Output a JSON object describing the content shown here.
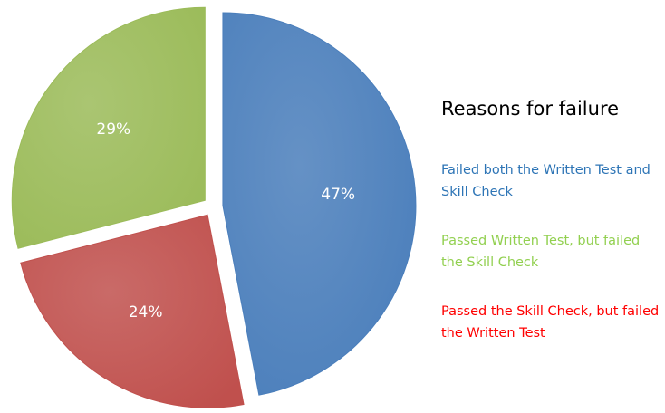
{
  "chart_data": {
    "type": "pie",
    "title": "Reasons for failure",
    "categories": [
      "Failed both the Written Test and Skill Check",
      "Passed the Skill Check, but failed the Written Test",
      "Passed Written Test, but failed the Skill Check"
    ],
    "values": [
      47,
      24,
      29
    ],
    "value_labels": [
      "47%",
      "24%",
      "29%"
    ],
    "colors": [
      "#4a7ebb",
      "#c0504d",
      "#9bbb59"
    ],
    "legend_text_colors": [
      "#2e75b6",
      "#ff0000",
      "#92d050"
    ],
    "legend_order": [
      0,
      2,
      1
    ]
  }
}
